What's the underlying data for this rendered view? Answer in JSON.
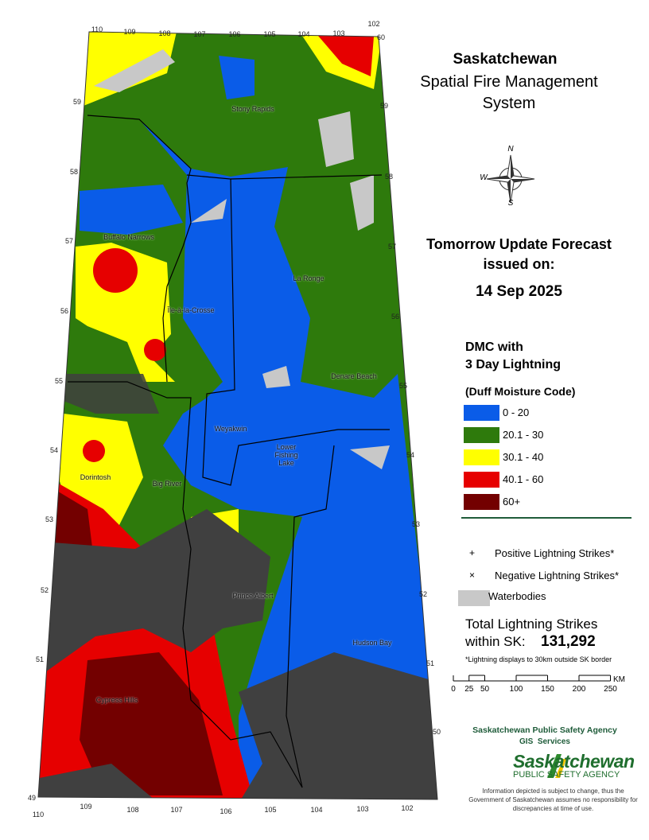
{
  "header": {
    "title": "Saskatchewan",
    "subtitle_lines": [
      "Spatial Fire Management",
      "System"
    ]
  },
  "forecast": {
    "lines": [
      "Tomorrow Update Forecast",
      "issued on:"
    ],
    "date": "14 Sep 2025"
  },
  "legend": {
    "title_lines": [
      "DMC with",
      "3 Day Lightning"
    ],
    "subtitle": "(Duff Moisture Code)",
    "classes": [
      {
        "label": "0 - 20",
        "color": "#0a5ce8"
      },
      {
        "label": "20.1 - 30",
        "color": "#2e7a0c"
      },
      {
        "label": "30.1 - 40",
        "color": "#ffff00"
      },
      {
        "label": "40.1 - 60",
        "color": "#e60000"
      },
      {
        "label": "60+",
        "color": "#730000"
      }
    ],
    "symbols": [
      {
        "symbol": "+",
        "label": "Positive Lightning Strikes*"
      },
      {
        "symbol": "×",
        "label": "Negative Lightning Strikes*"
      }
    ],
    "waterbodies": {
      "label": "Waterbodies",
      "color": "#c8c8c8"
    }
  },
  "total": {
    "lines": [
      "Total Lightning Strikes",
      "within SK:"
    ],
    "value": "131,292",
    "note": "*Lightning displays to 30km outside SK border"
  },
  "scale": {
    "ticks": [
      0,
      25,
      50,
      100,
      150,
      200,
      250
    ],
    "unit": "KM"
  },
  "compass": [
    "N",
    "W",
    "S"
  ],
  "places": [
    {
      "label": "Stony Rapids"
    },
    {
      "label": "Buffalo Narrows"
    },
    {
      "label": "La Ronge"
    },
    {
      "label": "Île-à-la-Crosse"
    },
    {
      "label": "Denare Beach"
    },
    {
      "label": "Weyakwin"
    },
    {
      "label": "Lower Fishing Lake"
    },
    {
      "label": "Dorintosh"
    },
    {
      "label": "Big River"
    },
    {
      "label": "Prince Albert"
    },
    {
      "label": "Hudson Bay"
    },
    {
      "label": "Cypress Hills"
    }
  ],
  "grid_labels": {
    "top": [
      110,
      109,
      108,
      107,
      106,
      105,
      104,
      103,
      102
    ],
    "bottom": [
      110,
      109,
      108,
      107,
      106,
      105,
      104,
      103,
      102
    ],
    "left": [
      59,
      58,
      57,
      56,
      55,
      54,
      53,
      52,
      51,
      49
    ],
    "right": [
      60,
      59,
      58,
      57,
      56,
      55,
      54,
      53,
      52,
      51,
      50
    ]
  },
  "footer": {
    "agency": "Saskatchewan Public Safety Agency",
    "unit": "GIS  Services",
    "logo_name": "Saskatchewan",
    "logo_sub": "PUBLIC SAFETY AGENCY",
    "disclaimer": "Information depicted is subject to change, thus the Government of Saskatchewan assumes no responsibility for discrepancies at time of use."
  }
}
